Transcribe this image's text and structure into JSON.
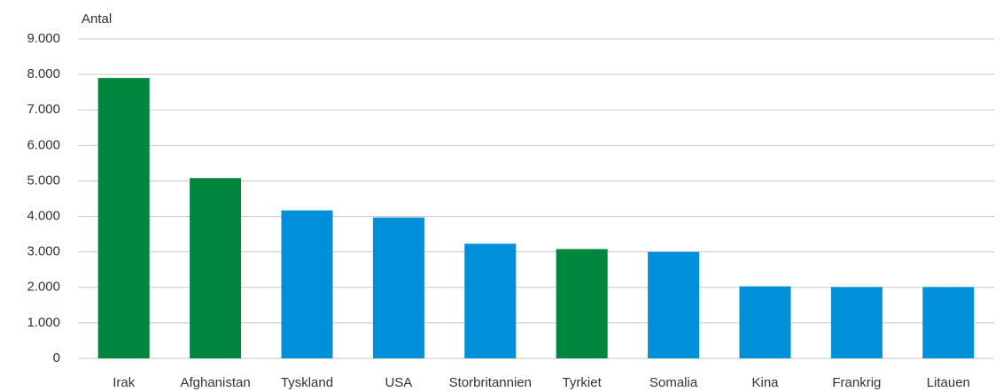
{
  "chart_data": {
    "type": "bar",
    "y_label": "Antal",
    "categories": [
      "Irak",
      "Afghanistan",
      "Tyskland",
      "USA",
      "Storbritannien",
      "Tyrkiet",
      "Somalia",
      "Kina",
      "Frankrig",
      "Litauen"
    ],
    "values": [
      7900,
      5080,
      4170,
      3970,
      3230,
      3080,
      3000,
      2030,
      2010,
      2010
    ],
    "colors": [
      "#00873e",
      "#00873e",
      "#0090d9",
      "#0090d9",
      "#0090d9",
      "#00873e",
      "#0090d9",
      "#0090d9",
      "#0090d9",
      "#0090d9"
    ],
    "ylim": [
      0,
      9000
    ],
    "yticks": [
      0,
      {
        "value": 1000,
        "label": "1.000"
      },
      {
        "value": 2000,
        "label": "2.000"
      },
      {
        "value": 3000,
        "label": "3.000"
      },
      {
        "value": 4000,
        "label": "4.000"
      },
      {
        "value": 5000,
        "label": "5.000"
      },
      {
        "value": 6000,
        "label": "6.000"
      },
      {
        "value": 7000,
        "label": "7.000"
      },
      {
        "value": 8000,
        "label": "8.000"
      },
      {
        "value": 9000,
        "label": "9.000"
      }
    ],
    "grid": true
  }
}
